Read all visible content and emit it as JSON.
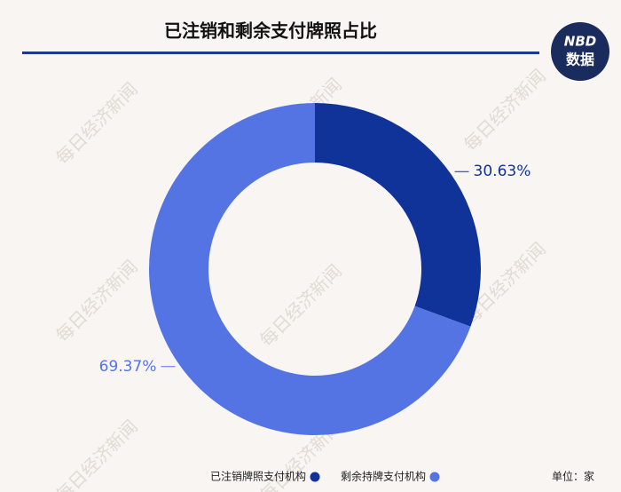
{
  "chart_data": {
    "type": "donut",
    "title": "已注销和剩余支付牌照占比",
    "series": [
      {
        "name": "已注销牌照支付机构",
        "color": "#10339a",
        "values": [
          30.63
        ],
        "value_labels": [
          "30.63%"
        ]
      },
      {
        "name": "剩余持牌支付机构",
        "color": "#5574e3",
        "values": [
          69.37
        ],
        "value_labels": [
          "69.37%"
        ]
      }
    ],
    "unit_note": "单位：家",
    "watermark": "每日经济新闻"
  },
  "logo": {
    "line1": "NBD",
    "line2": "数据"
  }
}
